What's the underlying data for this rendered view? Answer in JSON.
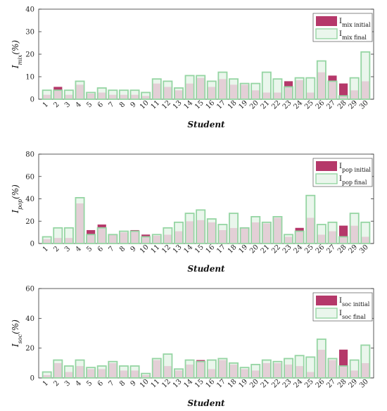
{
  "colors": {
    "initial_fill": "#b5386a",
    "final_stroke": "#95d5a3",
    "final_fill": "#eaf6ec",
    "overlap_fill": "#e3cfd6",
    "axis": "#333333",
    "grid": "#eeeeee"
  },
  "chart_data": [
    {
      "type": "bar",
      "categories": [
        "1",
        "2",
        "3",
        "4",
        "5",
        "6",
        "7",
        "8",
        "9",
        "10",
        "11",
        "12",
        "13",
        "14",
        "15",
        "16",
        "17",
        "18",
        "19",
        "20",
        "21",
        "22",
        "23",
        "24",
        "25",
        "26",
        "27",
        "28",
        "29",
        "30"
      ],
      "xlabel": "Student",
      "ylabel": {
        "main": "I",
        "sub": "mix",
        "suffix": "(%)"
      },
      "ylim": [
        0,
        40
      ],
      "yticks": [
        0,
        10,
        20,
        30,
        40
      ],
      "grid": false,
      "legend_position": "top-right",
      "series": [
        {
          "name": {
            "main": "I",
            "sub": "mix initial"
          },
          "values": [
            2,
            5.5,
            2,
            6.5,
            2.5,
            3,
            2,
            2,
            2,
            1.5,
            7,
            5.5,
            4,
            7,
            9.5,
            5.5,
            9,
            6.5,
            6.5,
            4,
            3,
            3,
            8,
            8.5,
            3,
            12,
            10.5,
            7,
            4,
            8
          ]
        },
        {
          "name": {
            "main": "I",
            "sub": "mix final"
          },
          "values": [
            4,
            4,
            4,
            8,
            3,
            5,
            4,
            4,
            4,
            3,
            9,
            8,
            5,
            10.5,
            10.5,
            8,
            12,
            9,
            7,
            7,
            12,
            9,
            5.5,
            9.5,
            9.5,
            17,
            8,
            1.5,
            9.5,
            21
          ]
        }
      ]
    },
    {
      "type": "bar",
      "categories": [
        "1",
        "2",
        "3",
        "4",
        "5",
        "6",
        "7",
        "8",
        "9",
        "10",
        "11",
        "12",
        "13",
        "14",
        "15",
        "16",
        "17",
        "18",
        "19",
        "20",
        "21",
        "22",
        "23",
        "24",
        "25",
        "26",
        "27",
        "28",
        "29",
        "30"
      ],
      "xlabel": "Student",
      "ylabel": {
        "main": "I",
        "sub": "pop",
        "suffix": "(%)"
      },
      "ylim": [
        0,
        80
      ],
      "yticks": [
        0,
        20,
        40,
        60,
        80
      ],
      "grid": false,
      "legend_position": "top-right",
      "series": [
        {
          "name": {
            "main": "I",
            "sub": "pop initial"
          },
          "values": [
            4,
            5,
            5,
            36,
            12,
            17,
            8,
            10,
            12,
            8,
            7,
            8,
            11,
            20,
            21,
            19,
            12,
            14,
            14,
            19,
            18,
            23,
            6,
            14,
            23,
            8,
            11,
            16,
            16,
            6
          ]
        },
        {
          "name": {
            "main": "I",
            "sub": "pop final"
          },
          "values": [
            6,
            14,
            14,
            41,
            8,
            14,
            8,
            11,
            11,
            6,
            8,
            14,
            19,
            27,
            30,
            22,
            17,
            27,
            14,
            24,
            19,
            24,
            8,
            11,
            43,
            17,
            19,
            6,
            27,
            19
          ]
        }
      ]
    },
    {
      "type": "bar",
      "categories": [
        "1",
        "2",
        "3",
        "4",
        "5",
        "6",
        "7",
        "8",
        "9",
        "10",
        "11",
        "12",
        "13",
        "14",
        "15",
        "16",
        "17",
        "18",
        "19",
        "20",
        "21",
        "22",
        "23",
        "24",
        "25",
        "26",
        "27",
        "28",
        "29",
        "30"
      ],
      "xlabel": "Student",
      "ylabel": {
        "main": "I",
        "sub": "soc",
        "suffix": "(%)"
      },
      "ylim": [
        0,
        60
      ],
      "yticks": [
        0,
        20,
        40,
        60
      ],
      "grid": false,
      "legend_position": "top-right",
      "series": [
        {
          "name": {
            "main": "I",
            "sub": "soc initial"
          },
          "values": [
            2,
            10,
            4,
            8,
            6,
            6,
            10,
            5,
            5,
            2,
            12,
            8,
            5,
            9,
            12,
            6,
            12,
            9,
            6,
            5,
            10,
            10,
            9,
            8,
            4,
            19,
            12,
            19,
            5,
            10
          ]
        },
        {
          "name": {
            "main": "I",
            "sub": "soc final"
          },
          "values": [
            4,
            12,
            8,
            12,
            7,
            8,
            11,
            8,
            8,
            3,
            13,
            16,
            6,
            12,
            11,
            12,
            13,
            10,
            7,
            9,
            12,
            11,
            13,
            15,
            14,
            26,
            13,
            8,
            12,
            22
          ]
        }
      ]
    }
  ]
}
